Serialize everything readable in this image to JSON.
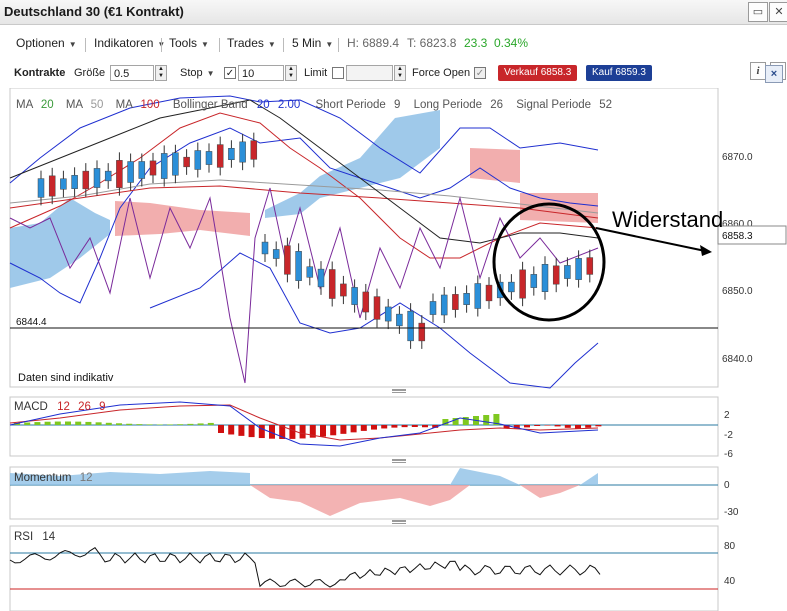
{
  "window": {
    "title": "Deutschland 30 (€1 Kontrakt)"
  },
  "menu": {
    "options": "Optionen",
    "indicators": "Indikatoren",
    "tools": "Tools",
    "trades": "Trades",
    "interval": "5 Min",
    "high": "H: 6889.4",
    "low": "T: 6823.8",
    "change": "23.3",
    "change_pct": "0.34%",
    "info_icon": "info-icon",
    "tools_icon": "wrench-icon"
  },
  "toolbar": {
    "contracts_label": "Kontrakte",
    "size_label": "Größe",
    "size_value": "0.5",
    "stop_label": "Stop",
    "stop_value": "10",
    "limit_label": "Limit",
    "limit_value": "",
    "force_open_label": "Force Open",
    "sell_button": "Verkauf 6858.3",
    "buy_button": "Kauf 6859.3",
    "close_label": "×"
  },
  "colors": {
    "bearish": "#c8262a",
    "bullish": "#2b8fd8",
    "ichimoku_cloud_red": "#f0a0a0",
    "ichimoku_cloud_blue": "#8ec0e6",
    "ma20": "#3a9a3a",
    "ma50": "#9a9a9a",
    "ma100": "#c8262a",
    "macd_red": "#d01010",
    "macd_green": "#7fc820",
    "rsi_upper": "#2a7aa0",
    "rsi_lower": "#cc2222"
  },
  "price_panel": {
    "legend": {
      "ma1_label": "MA",
      "ma1_value": "20",
      "ma2_label": "MA",
      "ma2_value": "50",
      "ma3_label": "MA",
      "ma3_value": "100",
      "bb_label": "Bollinger Band",
      "bb_period": "20",
      "bb_dev": "2.00",
      "short_label": "Short Periode",
      "short_value": "9",
      "long_label": "Long Periode",
      "long_value": "26",
      "signal_label": "Signal Periode",
      "signal_value": "52"
    },
    "price_labels": [
      "6870.0",
      "6860.0",
      "6850.0",
      "6840.0"
    ],
    "current_price": "6858.3",
    "support_label": "6844.4",
    "disclaimer": "Daten sind indikativ",
    "annotation": "Widerstand"
  },
  "macd_panel": {
    "label": "MACD",
    "p1": "12",
    "p2": "26",
    "p3": "9",
    "ticks": [
      "2",
      "-2",
      "-6"
    ]
  },
  "momentum_panel": {
    "label": "Momentum",
    "period": "12",
    "ticks": [
      "0",
      "-30"
    ]
  },
  "rsi_panel": {
    "label": "RSI",
    "period": "14",
    "ticks": [
      "80",
      "40"
    ]
  }
}
